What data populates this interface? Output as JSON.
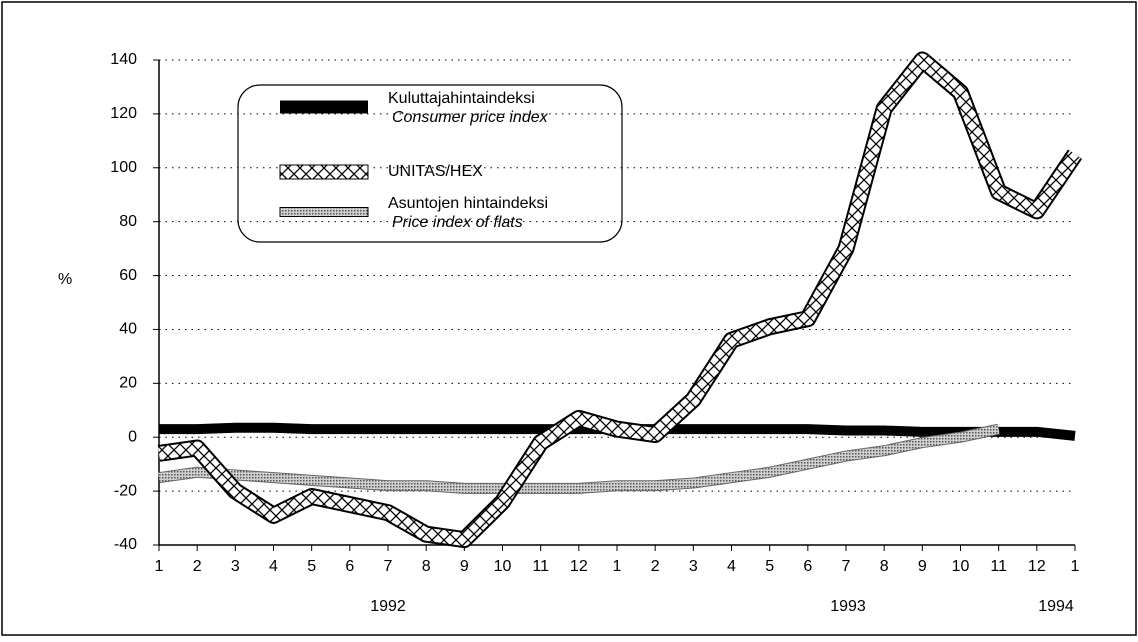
{
  "chart_data": {
    "type": "line",
    "y_label": "%",
    "categories": [
      "1",
      "2",
      "3",
      "4",
      "5",
      "6",
      "7",
      "8",
      "9",
      "10",
      "11",
      "12",
      "1",
      "2",
      "3",
      "4",
      "5",
      "6",
      "7",
      "8",
      "9",
      "10",
      "11",
      "12",
      "1"
    ],
    "year_labels": [
      "1992",
      "1993",
      "1994"
    ],
    "ylim": [
      -40,
      140
    ],
    "yticks": [
      -40,
      -20,
      0,
      20,
      40,
      60,
      80,
      100,
      120,
      140
    ],
    "grid": true,
    "series": [
      {
        "name": "Kuluttajahintaindeksi",
        "subname": "Consumer price index",
        "color": "#000000",
        "fill_pattern": "solid",
        "values": [
          3,
          3,
          3.5,
          3.5,
          3,
          3,
          3,
          3,
          3,
          3,
          3,
          3,
          3,
          3,
          3,
          3,
          3,
          3,
          2.5,
          2.5,
          2,
          2,
          2,
          2,
          0.5
        ]
      },
      {
        "name": "UNITAS/HEX",
        "color": "#ffffff",
        "fill_pattern": "crosshatch",
        "values": [
          -6,
          -4,
          -20,
          -29,
          -22,
          -25,
          -28,
          -36,
          -38,
          -24,
          -2,
          7,
          3,
          1,
          14,
          36,
          41,
          44,
          70,
          122,
          140,
          128,
          91,
          84,
          105
        ]
      },
      {
        "name": "Asuntojen hintaindeksi",
        "subname": "Price index of flats",
        "color": "#a8a8a8",
        "fill_pattern": "dotted",
        "values": [
          -15,
          -13,
          -14,
          -15,
          -16,
          -17,
          -18,
          -18,
          -19,
          -19,
          -19,
          -19,
          -18,
          -18,
          -17,
          -15,
          -13,
          -10,
          -7,
          -5,
          -2,
          0,
          3,
          null,
          null
        ]
      }
    ]
  }
}
